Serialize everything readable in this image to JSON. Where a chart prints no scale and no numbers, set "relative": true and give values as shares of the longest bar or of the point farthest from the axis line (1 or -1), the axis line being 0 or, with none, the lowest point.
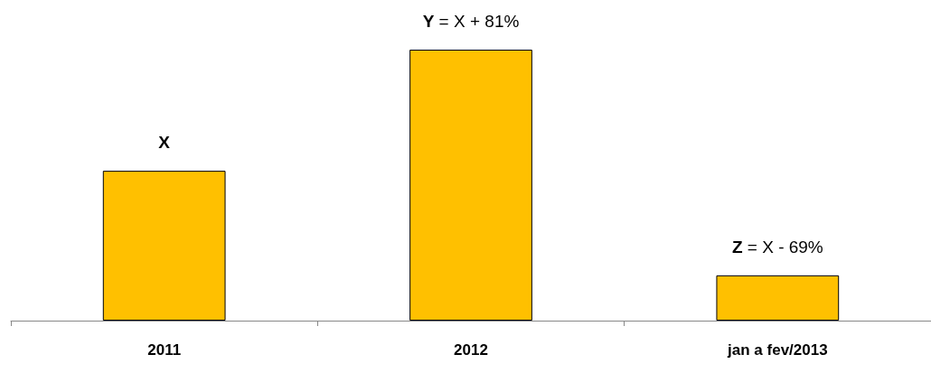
{
  "chart_data": {
    "type": "bar",
    "relative": true,
    "categories": [
      "2011",
      "2012",
      "jan a fev/2013"
    ],
    "values": [
      0.553,
      1,
      0.167
    ],
    "color": "#ffc000",
    "annotations": [
      {
        "text": "X",
        "x": "2011",
        "y": 0.553
      },
      {
        "text": "Y = X + 81%",
        "x": "2012",
        "y": 1
      },
      {
        "text": "Z = X - 69%",
        "x": "jan a fev/2013",
        "y": 0.167
      }
    ]
  }
}
